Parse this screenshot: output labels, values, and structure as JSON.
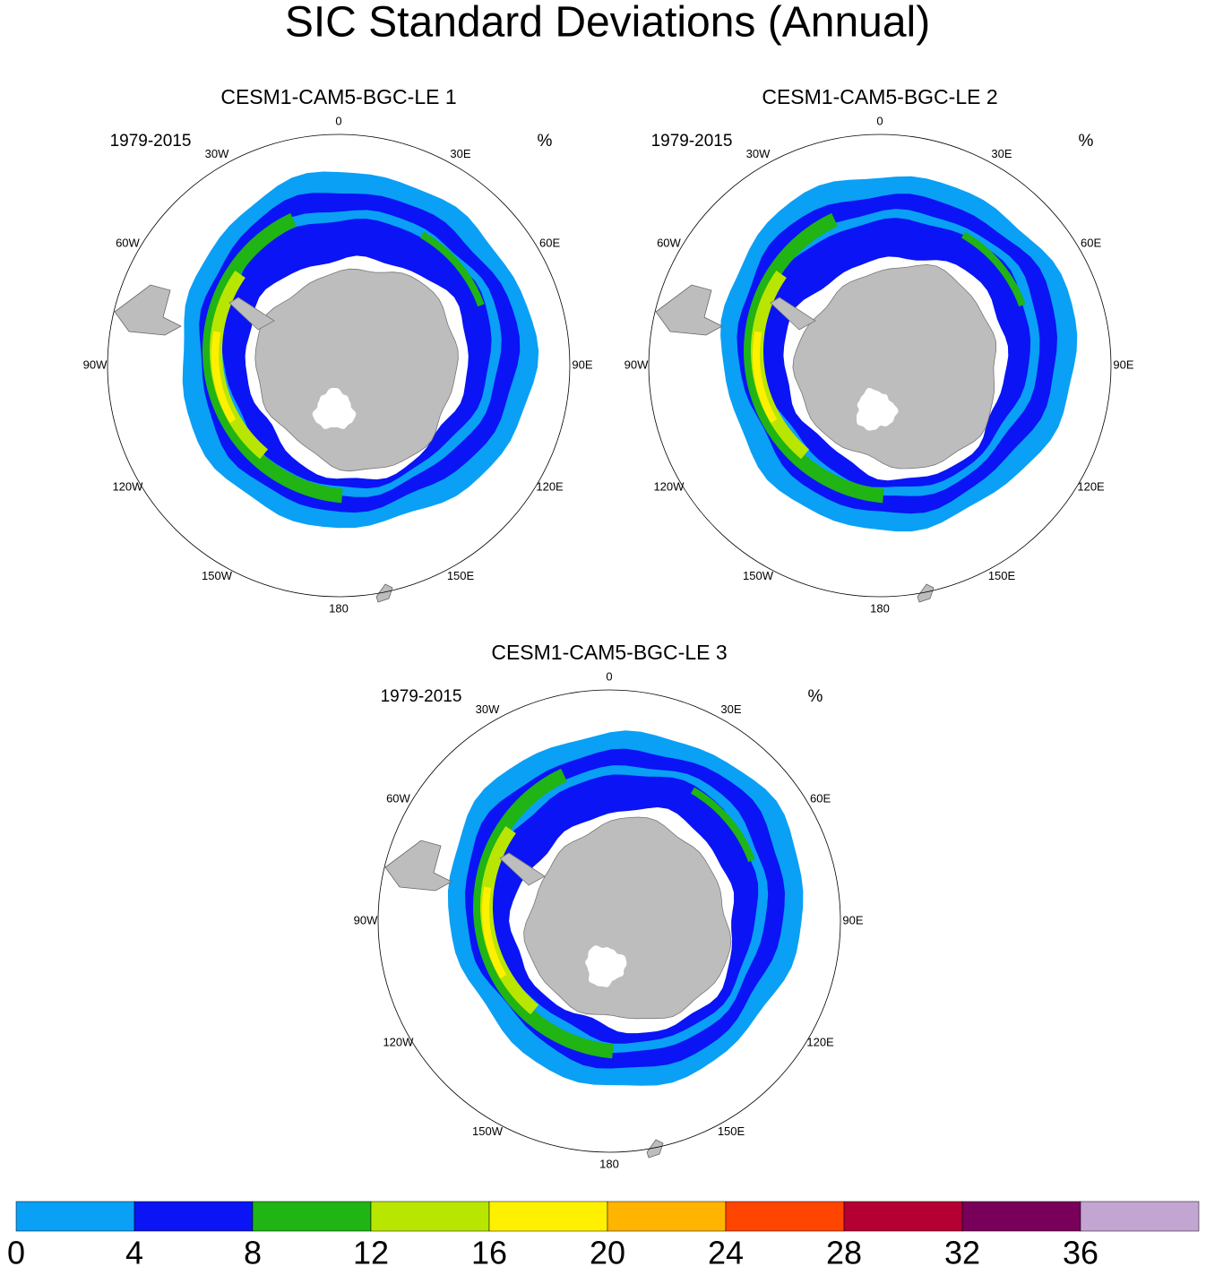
{
  "title": "SIC Standard Deviations (Annual)",
  "longitude_labels": [
    "0",
    "30E",
    "60E",
    "90E",
    "120E",
    "150E",
    "180",
    "150W",
    "120W",
    "90W",
    "60W",
    "30W"
  ],
  "panels": [
    {
      "title": "CESM1-CAM5-BGC-LE 1",
      "period": "1979-2015",
      "unit": "%"
    },
    {
      "title": "CESM1-CAM5-BGC-LE 2",
      "period": "1979-2015",
      "unit": "%"
    },
    {
      "title": "CESM1-CAM5-BGC-LE 3",
      "period": "1979-2015",
      "unit": "%"
    }
  ],
  "colorbar": {
    "colors": [
      "#0aa0f5",
      "#0a14f5",
      "#20b414",
      "#b9e600",
      "#fff000",
      "#ffb400",
      "#ff4600",
      "#b40032",
      "#78005a",
      "#c3a5d2"
    ],
    "labels": [
      0,
      4,
      8,
      12,
      16,
      20,
      24,
      28,
      32,
      36
    ]
  }
}
